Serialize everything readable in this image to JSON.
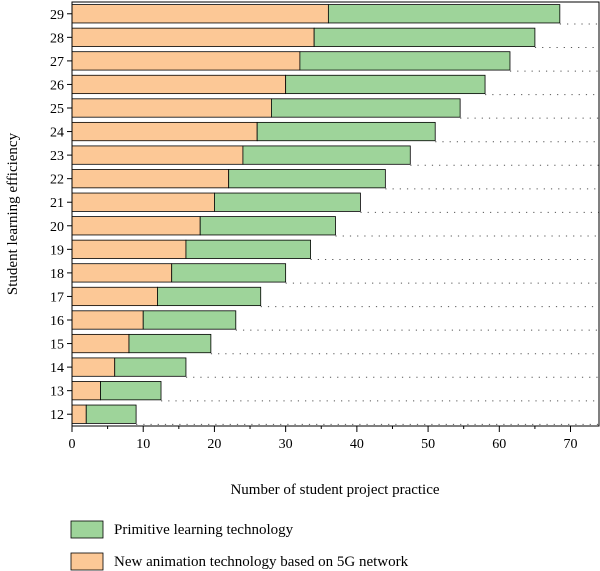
{
  "chart_data": {
    "type": "bar",
    "orientation": "horizontal",
    "stacked": true,
    "categories": [
      "12",
      "13",
      "14",
      "15",
      "16",
      "17",
      "18",
      "19",
      "20",
      "21",
      "22",
      "23",
      "24",
      "25",
      "26",
      "27",
      "28",
      "29"
    ],
    "series": [
      {
        "name": "New animation technology based on 5G network",
        "color": "#fcc896",
        "values": [
          2,
          4,
          6,
          8,
          10,
          12,
          14,
          16,
          18,
          20,
          22,
          24,
          26,
          28,
          30,
          32,
          34,
          36
        ]
      },
      {
        "name": "Primitive learning technology",
        "color": "#9ed49a",
        "values": [
          7,
          8.5,
          10,
          11.5,
          13,
          14.5,
          16,
          17.5,
          19,
          20.5,
          22,
          23.5,
          25,
          26.5,
          28,
          29.5,
          31,
          32.5
        ]
      }
    ],
    "xlabel": "Number of student project practice",
    "ylabel": "Student learning efficiency",
    "xlim": [
      0,
      74
    ],
    "xticks": [
      0,
      10,
      20,
      30,
      40,
      50,
      60,
      70
    ],
    "grid": "dotted horizontal",
    "legend": {
      "placement": "bottom",
      "order": [
        "Primitive learning technology",
        "New animation technology based on 5G network"
      ]
    }
  }
}
